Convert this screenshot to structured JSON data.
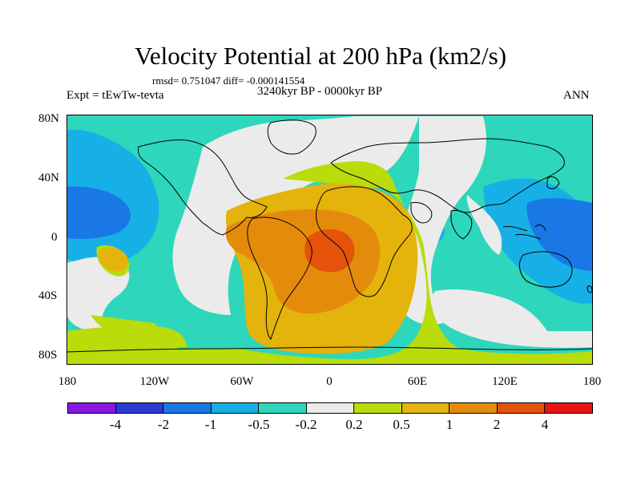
{
  "title": "Velocity Potential at 200 hPa (km2/s)",
  "stats": "rmsd= 0.751047 diff= -0.000141554",
  "experiment": "Expt = tEwTw-tevta",
  "period": "3240kyr BP - 0000kyr BP",
  "season": "ANN",
  "lat_labels": [
    "80N",
    "40N",
    "0",
    "40S",
    "80S"
  ],
  "lon_labels": [
    "180",
    "120W",
    "60W",
    "0",
    "60E",
    "120E",
    "180"
  ],
  "colorbar": {
    "colors": [
      "#8a17e6",
      "#2c3bd6",
      "#1a78e6",
      "#16b0e6",
      "#2ed6bb",
      "#ebebeb",
      "#b9dc0a",
      "#e4b30c",
      "#e48b0c",
      "#e55209",
      "#e81212"
    ],
    "labels": [
      "-4",
      "-2",
      "-1",
      "-0.5",
      "-0.2",
      "0.2",
      "0.5",
      "1",
      "2",
      "4"
    ]
  },
  "field_colors": {
    "ocean_teal": "#2ed6bb",
    "strong_blue": "#1a78e6",
    "light_blue": "#16b0e6",
    "neutral": "#ebebeb",
    "yellow_green": "#b9dc0a",
    "gold": "#e4b30c",
    "orange": "#e48b0c",
    "red_orange": "#e55209"
  }
}
